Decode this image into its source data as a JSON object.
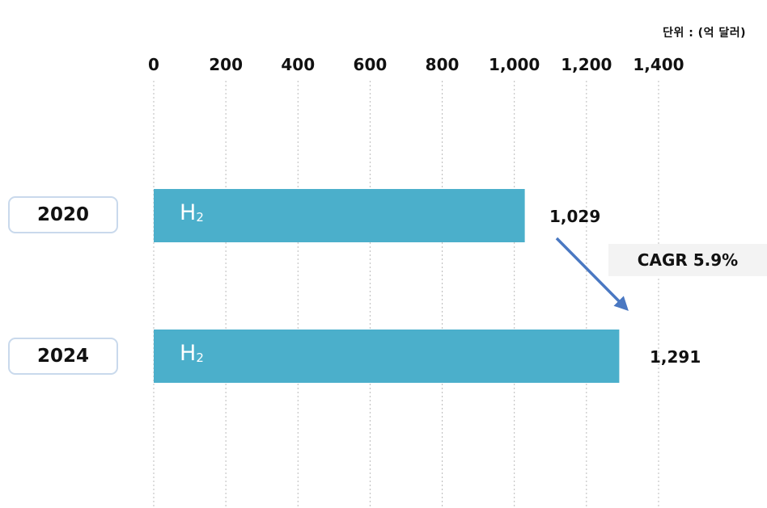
{
  "unit_label": "단위 : (억 달러)",
  "colors": {
    "bar": "#4bafcb",
    "arrow": "#4a78c2",
    "grid": "#bbbbbb"
  },
  "chart_data": {
    "type": "bar",
    "orientation": "horizontal",
    "categories": [
      "2020",
      "2024"
    ],
    "series": [
      {
        "name": "",
        "values": [
          1029,
          1291
        ]
      }
    ],
    "bar_text": [
      "H",
      "H"
    ],
    "bar_text_sub": [
      "2",
      "2"
    ],
    "value_labels": [
      "1,029",
      "1,291"
    ],
    "x_ticks": [
      0,
      200,
      400,
      600,
      800,
      1000,
      1200,
      1400
    ],
    "x_tick_labels": [
      "0",
      "200",
      "400",
      "600",
      "800",
      "1,000",
      "1,200",
      "1,400"
    ],
    "xlim": [
      0,
      1400
    ],
    "grid": true,
    "annotation": "CAGR 5.9%"
  }
}
